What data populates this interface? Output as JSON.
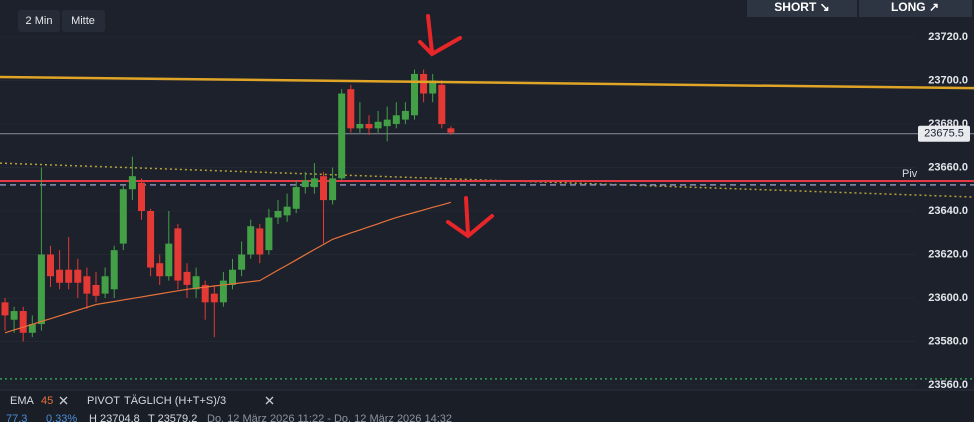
{
  "chart_data": {
    "type": "candlestick",
    "timeframe": "2 Min",
    "mode": "Mitte",
    "buttons": [
      "SHORT ↘",
      "LONG ↗"
    ],
    "ylim": [
      23557.7,
      23737
    ],
    "yticks": [
      {
        "value": 23560,
        "label": "23560.0"
      },
      {
        "value": 23580,
        "label": "23580.0"
      },
      {
        "value": 23600,
        "label": "23600.0"
      },
      {
        "value": 23620,
        "label": "23620.0"
      },
      {
        "value": 23640,
        "label": "23640.0"
      },
      {
        "value": 23660,
        "label": "23660.0"
      },
      {
        "value": 23680,
        "label": "23680.0"
      },
      {
        "value": 23700,
        "label": "23700.0"
      },
      {
        "value": 23720,
        "label": "23720.0"
      }
    ],
    "up_color": "#43a047",
    "down_color": "#e53935",
    "open": [
      23598,
      23590,
      23594,
      23584,
      23588,
      23620,
      23613,
      23613,
      23613,
      23610,
      23606,
      23602,
      23604,
      23625,
      23650,
      23653,
      23640,
      23616,
      23610,
      23632,
      23612,
      23604,
      23606,
      23602,
      23598,
      23606,
      23613,
      23620,
      23632,
      23622,
      23637,
      23638,
      23641,
      23651,
      23651,
      23656,
      23645,
      23655,
      23696,
      23678,
      23680,
      23678,
      23679,
      23680,
      23682,
      23684,
      23703,
      23694,
      23698,
      23678
    ],
    "high": [
      23600,
      23596,
      23596,
      23592,
      23660,
      23624,
      23622,
      23628,
      23618,
      23614,
      23612,
      23614,
      23624,
      23652,
      23665,
      23655,
      23641,
      23620,
      23640,
      23634,
      23616,
      23614,
      23608,
      23606,
      23612,
      23618,
      23626,
      23636,
      23634,
      23641,
      23645,
      23648,
      23654,
      23658,
      23662,
      23658,
      23660,
      23696,
      23698,
      23690,
      23684,
      23686,
      23688,
      23690,
      23690,
      23705,
      23705,
      23703,
      23700,
      23679
    ],
    "low": [
      23585,
      23584,
      23580,
      23582,
      23585,
      23605,
      23604,
      23604,
      23600,
      23595,
      23598,
      23600,
      23600,
      23622,
      23645,
      23636,
      23610,
      23606,
      23608,
      23604,
      23600,
      23600,
      23590,
      23582,
      23596,
      23604,
      23610,
      23618,
      23616,
      23620,
      23634,
      23635,
      23639,
      23648,
      23648,
      23625,
      23643,
      23654,
      23676,
      23676,
      23675,
      23676,
      23672,
      23678,
      23680,
      23682,
      23690,
      23690,
      23678,
      23675
    ],
    "close": [
      23592,
      23594,
      23584,
      23588,
      23620,
      23610,
      23607,
      23607,
      23607,
      23602,
      23601,
      23610,
      23622,
      23650,
      23656,
      23640,
      23614,
      23610,
      23625,
      23608,
      23606,
      23610,
      23598,
      23598,
      23608,
      23613,
      23620,
      23633,
      23620,
      23637,
      23640,
      23642,
      23651,
      23654,
      23655,
      23645,
      23655,
      23694,
      23678,
      23680,
      23678,
      23681,
      23682,
      23684,
      23686,
      23703,
      23694,
      23700,
      23680,
      23676
    ],
    "ema": {
      "label": "EMA",
      "period": 45,
      "color": "#e8713a",
      "values": [
        23584,
        23585.3,
        23586.6,
        23587.9,
        23589.2,
        23590.5,
        23591.8,
        23593.1,
        23594.4,
        23595.7,
        23597,
        23597.7,
        23598.4,
        23599.1,
        23599.8,
        23600.5,
        23601.2,
        23601.9,
        23602.6,
        23603.3,
        23604,
        23604.5,
        23605,
        23605.5,
        23606,
        23606.5,
        23607,
        23607.5,
        23608,
        23610.4,
        23612.8,
        23615.1,
        23617.5,
        23619.9,
        23622.3,
        23624.6,
        23627,
        23628.4,
        23629.9,
        23631.3,
        23632.7,
        23634.1,
        23635.6,
        23637,
        23638.2,
        23639.3,
        23640.5,
        23641.7,
        23642.8,
        23644
      ]
    },
    "pivot": {
      "label": "PIVOT",
      "method": "TÄGLICH (H+T+S)/3",
      "short_label": "Piv",
      "value": 23653.8,
      "color": "#e53946"
    },
    "trendline": {
      "start": 23701.6,
      "end": 23696.5,
      "color": "#e0a526"
    },
    "dotted_level": {
      "start": 23662,
      "end": 23646.4,
      "color": "#b5a23a"
    },
    "dashed_level": {
      "value": 23652,
      "color": "#8a8fb8"
    },
    "green_level": {
      "value": 23562.8,
      "color": "#2e9e4f"
    },
    "last_price": {
      "value": 23675.5
    },
    "info": [
      "77.3",
      "0.33%",
      "H 23704.8",
      "T 23579.2",
      "Do. 12 März 2026 11:22 - Do. 12 März 2026 14:32"
    ]
  }
}
